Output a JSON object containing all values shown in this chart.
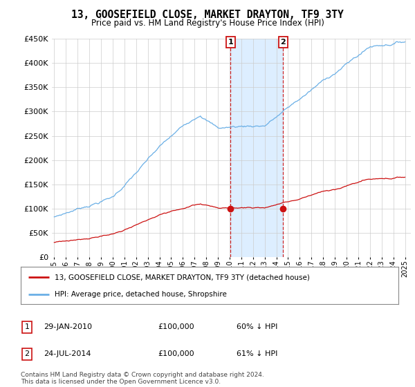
{
  "title": "13, GOOSEFIELD CLOSE, MARKET DRAYTON, TF9 3TY",
  "subtitle": "Price paid vs. HM Land Registry's House Price Index (HPI)",
  "ylim": [
    0,
    450000
  ],
  "yticks": [
    0,
    50000,
    100000,
    150000,
    200000,
    250000,
    300000,
    350000,
    400000,
    450000
  ],
  "ytick_labels": [
    "£0",
    "£50K",
    "£100K",
    "£150K",
    "£200K",
    "£250K",
    "£300K",
    "£350K",
    "£400K",
    "£450K"
  ],
  "hpi_color": "#6aafe6",
  "price_color": "#cc1111",
  "shade_color": "#ddeeff",
  "marker1_year": 2010.08,
  "marker2_year": 2014.58,
  "marker1_price": 100000,
  "marker2_price": 100000,
  "legend_line1": "13, GOOSEFIELD CLOSE, MARKET DRAYTON, TF9 3TY (detached house)",
  "legend_line2": "HPI: Average price, detached house, Shropshire",
  "footnote": "Contains HM Land Registry data © Crown copyright and database right 2024.\nThis data is licensed under the Open Government Licence v3.0.",
  "background_color": "#ffffff",
  "plot_bg_color": "#ffffff",
  "grid_color": "#cccccc"
}
